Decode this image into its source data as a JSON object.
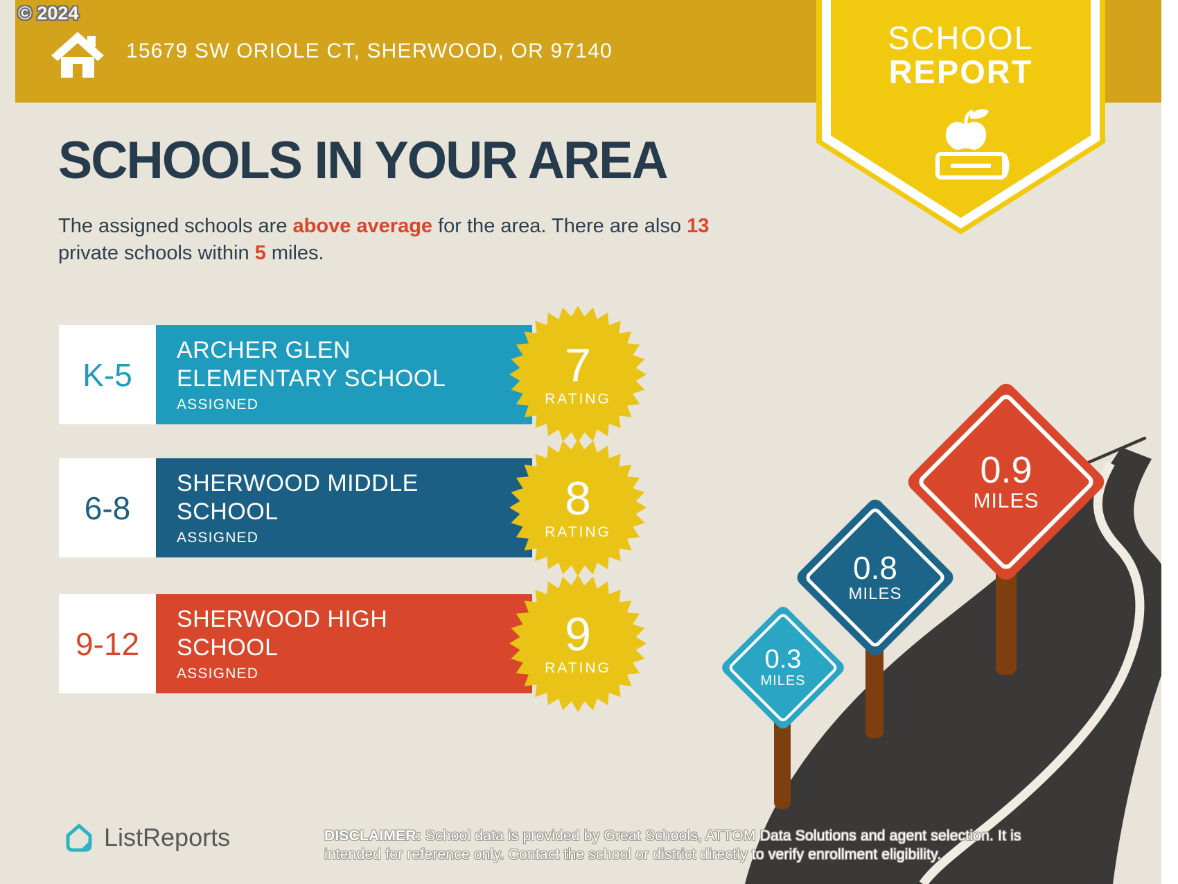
{
  "copyright": "© 2024",
  "banner": {
    "address": "15679 SW ORIOLE CT, SHERWOOD, OR 97140"
  },
  "badge": {
    "line1": "SCHOOL",
    "line2": "REPORT"
  },
  "page": {
    "title": "SCHOOLS IN YOUR AREA"
  },
  "subtitle": {
    "part1": "The assigned schools are ",
    "highlight1": "above average",
    "part2": " for the area. There are also ",
    "highlight2": "13",
    "part3": " private schools within ",
    "highlight3": "5",
    "part4": " miles."
  },
  "schools": [
    {
      "grades": "K-5",
      "name": "ARCHER GLEN ELEMENTARY SCHOOL",
      "status": "ASSIGNED",
      "rating": "7",
      "rating_label": "RATING",
      "color": "#1F9CBD"
    },
    {
      "grades": "6-8",
      "name": "SHERWOOD MIDDLE SCHOOL",
      "status": "ASSIGNED",
      "rating": "8",
      "rating_label": "RATING",
      "color": "#1B6084"
    },
    {
      "grades": "9-12",
      "name": "SHERWOOD HIGH SCHOOL",
      "status": "ASSIGNED",
      "rating": "9",
      "rating_label": "RATING",
      "color": "#D8472B"
    }
  ],
  "signs": [
    {
      "distance": "0.3",
      "unit": "MILES",
      "color": "#2AA6C4"
    },
    {
      "distance": "0.8",
      "unit": "MILES",
      "color": "#1D6489"
    },
    {
      "distance": "0.9",
      "unit": "MILES",
      "color": "#D8472B"
    }
  ],
  "footer": {
    "logo": "ListReports",
    "disclaimer_label": "DISCLAIMER:",
    "disclaimer": " School data is provided by Great Schools, ATTOM Data Solutions and agent selection. It is intended for reference only. Contact the school or district directly to verify enrollment eligibility."
  },
  "colors": {
    "background": "#E9E4D9",
    "banner_gold": "#D2A31B",
    "badge_yellow": "#F1C90E",
    "starburst_yellow": "#E9C316",
    "navy": "#263B4B",
    "red_accent": "#D8472B",
    "teal": "#1F9CBD",
    "dark_blue": "#1B6084",
    "road": "#3B3938",
    "road_stripe": "#F0ECE1",
    "post_brown": "#7D3E10",
    "logo_teal": "#2CB4C4",
    "logo_gray": "#59595B"
  }
}
